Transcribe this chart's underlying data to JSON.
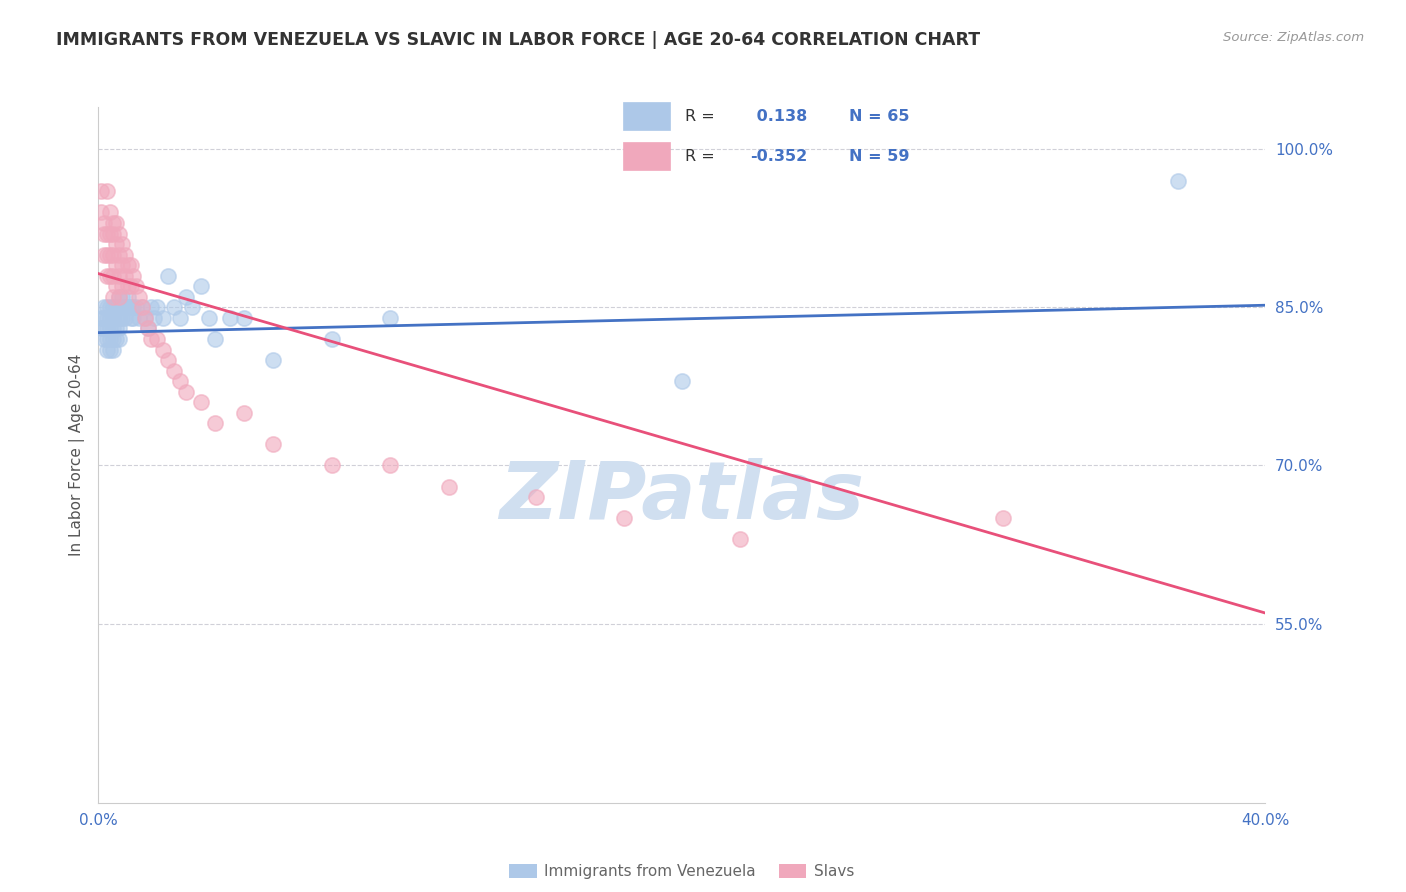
{
  "title": "IMMIGRANTS FROM VENEZUELA VS SLAVIC IN LABOR FORCE | AGE 20-64 CORRELATION CHART",
  "source": "Source: ZipAtlas.com",
  "ylabel": "In Labor Force | Age 20-64",
  "xlim": [
    0.0,
    0.4
  ],
  "ylim": [
    0.38,
    1.04
  ],
  "xticks": [
    0.0,
    0.05,
    0.1,
    0.15,
    0.2,
    0.25,
    0.3,
    0.35,
    0.4
  ],
  "xticklabels": [
    "0.0%",
    "",
    "",
    "",
    "",
    "",
    "",
    "",
    "40.0%"
  ],
  "yticks_right": [
    0.55,
    0.7,
    0.85,
    1.0
  ],
  "ytick_labels_right": [
    "55.0%",
    "70.0%",
    "85.0%",
    "100.0%"
  ],
  "gridline_color": "#d0d0d8",
  "background_color": "#ffffff",
  "series1_color": "#adc8e8",
  "series1_edge": "#adc8e8",
  "series2_color": "#f0a8bc",
  "series2_edge": "#f0a8bc",
  "trendline1_color": "#4472c4",
  "trendline2_color": "#e8507a",
  "R1": 0.138,
  "N1": 65,
  "R2": -0.352,
  "N2": 59,
  "legend_label1": "Immigrants from Venezuela",
  "legend_label2": "Slavs",
  "watermark_text": "ZIPatlas",
  "watermark_color": "#d0dff0",
  "series1_x": [
    0.001,
    0.001,
    0.002,
    0.002,
    0.002,
    0.002,
    0.003,
    0.003,
    0.003,
    0.003,
    0.003,
    0.004,
    0.004,
    0.004,
    0.004,
    0.004,
    0.005,
    0.005,
    0.005,
    0.005,
    0.005,
    0.006,
    0.006,
    0.006,
    0.006,
    0.007,
    0.007,
    0.007,
    0.007,
    0.007,
    0.008,
    0.008,
    0.008,
    0.009,
    0.009,
    0.01,
    0.01,
    0.011,
    0.011,
    0.012,
    0.012,
    0.013,
    0.014,
    0.015,
    0.016,
    0.017,
    0.018,
    0.019,
    0.02,
    0.022,
    0.024,
    0.026,
    0.028,
    0.03,
    0.032,
    0.035,
    0.038,
    0.04,
    0.045,
    0.05,
    0.06,
    0.08,
    0.1,
    0.2,
    0.37
  ],
  "series1_y": [
    0.84,
    0.83,
    0.85,
    0.84,
    0.83,
    0.82,
    0.85,
    0.84,
    0.83,
    0.82,
    0.81,
    0.85,
    0.84,
    0.83,
    0.82,
    0.81,
    0.85,
    0.84,
    0.83,
    0.82,
    0.81,
    0.85,
    0.84,
    0.83,
    0.82,
    0.86,
    0.85,
    0.84,
    0.83,
    0.82,
    0.86,
    0.85,
    0.84,
    0.85,
    0.84,
    0.86,
    0.85,
    0.85,
    0.84,
    0.85,
    0.84,
    0.85,
    0.84,
    0.85,
    0.84,
    0.83,
    0.85,
    0.84,
    0.85,
    0.84,
    0.88,
    0.85,
    0.84,
    0.86,
    0.85,
    0.87,
    0.84,
    0.82,
    0.84,
    0.84,
    0.8,
    0.82,
    0.84,
    0.78,
    0.97
  ],
  "series2_x": [
    0.001,
    0.001,
    0.002,
    0.002,
    0.002,
    0.003,
    0.003,
    0.003,
    0.003,
    0.004,
    0.004,
    0.004,
    0.004,
    0.005,
    0.005,
    0.005,
    0.005,
    0.005,
    0.006,
    0.006,
    0.006,
    0.006,
    0.007,
    0.007,
    0.007,
    0.007,
    0.008,
    0.008,
    0.008,
    0.009,
    0.009,
    0.01,
    0.01,
    0.011,
    0.011,
    0.012,
    0.013,
    0.014,
    0.015,
    0.016,
    0.017,
    0.018,
    0.02,
    0.022,
    0.024,
    0.026,
    0.028,
    0.03,
    0.035,
    0.04,
    0.05,
    0.06,
    0.08,
    0.1,
    0.12,
    0.15,
    0.18,
    0.22,
    0.31
  ],
  "series2_y": [
    0.94,
    0.96,
    0.92,
    0.9,
    0.93,
    0.92,
    0.9,
    0.88,
    0.96,
    0.94,
    0.92,
    0.9,
    0.88,
    0.93,
    0.92,
    0.9,
    0.88,
    0.86,
    0.93,
    0.91,
    0.89,
    0.87,
    0.92,
    0.9,
    0.88,
    0.86,
    0.91,
    0.89,
    0.87,
    0.9,
    0.88,
    0.89,
    0.87,
    0.89,
    0.87,
    0.88,
    0.87,
    0.86,
    0.85,
    0.84,
    0.83,
    0.82,
    0.82,
    0.81,
    0.8,
    0.79,
    0.78,
    0.77,
    0.76,
    0.74,
    0.75,
    0.72,
    0.7,
    0.7,
    0.68,
    0.67,
    0.65,
    0.63,
    0.65
  ],
  "trendline1_x": [
    0.0,
    0.4
  ],
  "trendline1_y": [
    0.826,
    0.852
  ],
  "trendline2_x": [
    0.0,
    0.4
  ],
  "trendline2_y": [
    0.882,
    0.56
  ]
}
